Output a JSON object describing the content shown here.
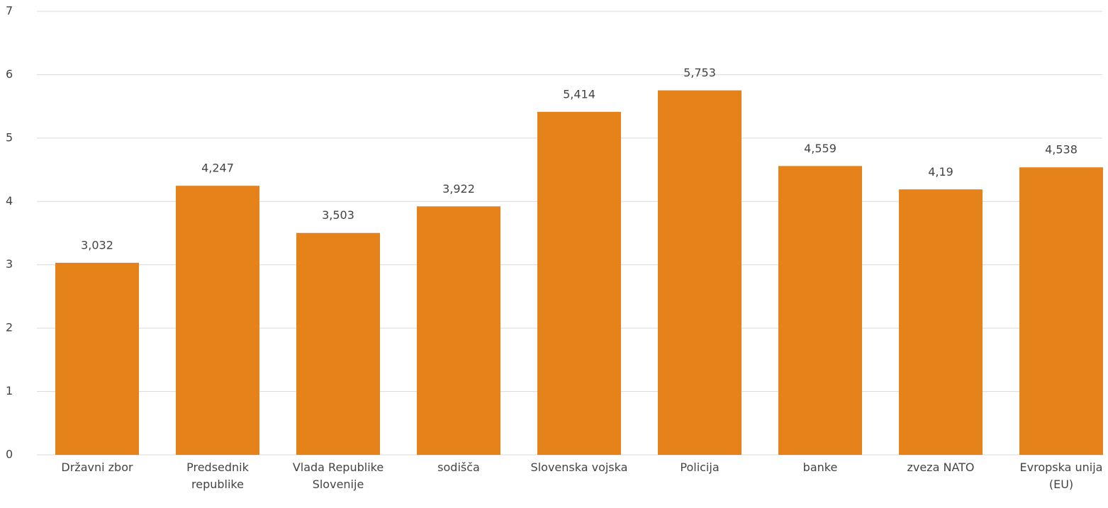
{
  "chart_data": {
    "type": "bar",
    "categories": [
      "Državni zbor",
      "Predsednik republike",
      "Vlada Republike Slovenije",
      "sodišča",
      "Slovenska vojska",
      "Policija",
      "banke",
      "zveza NATO",
      "Evropska unija (EU)"
    ],
    "values": [
      3.032,
      4.247,
      3.503,
      3.922,
      5.414,
      5.753,
      4.559,
      4.19,
      4.538
    ],
    "value_labels": [
      "3,032",
      "4,247",
      "3,503",
      "3,922",
      "5,414",
      "5,753",
      "4,559",
      "4,19",
      "4,538"
    ],
    "color": "#e5821a",
    "ylim": [
      0,
      7
    ],
    "yticks": [
      0,
      1,
      2,
      3,
      4,
      5,
      6,
      7
    ],
    "grid": true
  }
}
